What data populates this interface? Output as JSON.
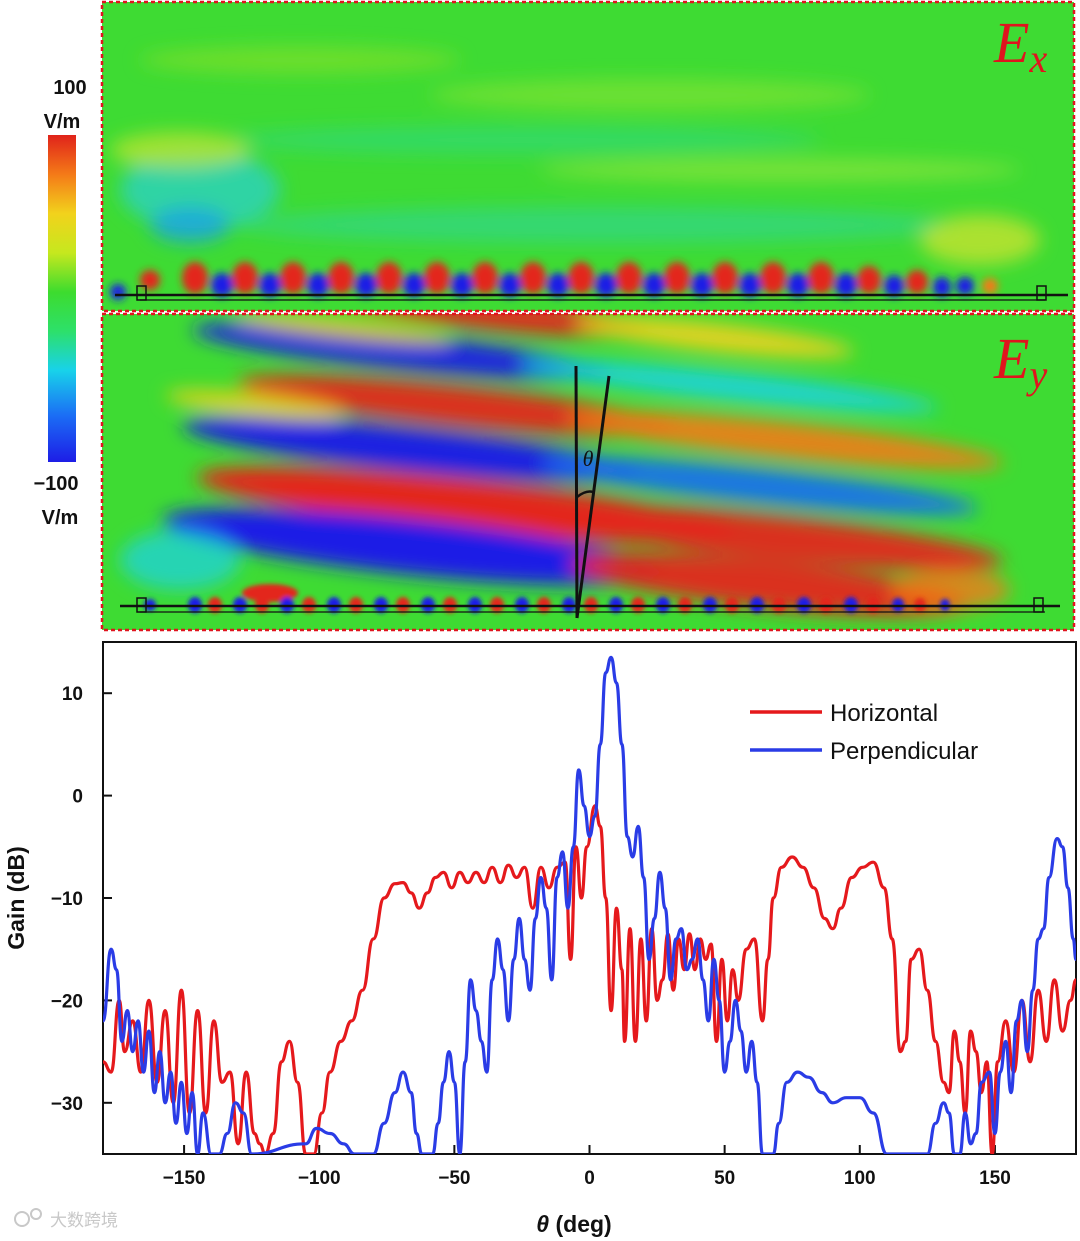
{
  "colorbar": {
    "max_value": "100",
    "max_unit": "V/m",
    "min_value": "−100",
    "min_unit": "V/m",
    "colors": [
      "#1d1de6",
      "#1b6cf5",
      "#18d2ea",
      "#2de06a",
      "#3ddc2e",
      "#c6e81e",
      "#f2d21c",
      "#f47a18",
      "#e0231a"
    ]
  },
  "field_panels": [
    {
      "id": "ex",
      "label_main": "E",
      "label_sub": "x"
    },
    {
      "id": "ey",
      "label_main": "E",
      "label_sub": "y",
      "angle_symbol": "θ"
    }
  ],
  "chart_data": {
    "type": "line",
    "title": "",
    "xlabel_symbol": "θ",
    "xlabel_unit": " (deg)",
    "ylabel": "Gain (dB)",
    "xlim": [
      -180,
      180
    ],
    "ylim": [
      -35,
      15
    ],
    "xticks": [
      -150,
      -100,
      -50,
      0,
      50,
      100,
      150
    ],
    "xtick_labels": [
      "−150",
      "−100",
      "−50",
      "0",
      "50",
      "100",
      "150"
    ],
    "yticks": [
      10,
      0,
      -10,
      -20,
      -30
    ],
    "ytick_labels": [
      "10",
      "0",
      "−10",
      "−20",
      "−30"
    ],
    "legend_position": "top-right",
    "series": [
      {
        "name": "Horizontal",
        "color": "#e5191c",
        "points": [
          [
            -180,
            -26
          ],
          [
            -177,
            -27
          ],
          [
            -174,
            -20
          ],
          [
            -172,
            -25
          ],
          [
            -169,
            -22
          ],
          [
            -166,
            -27
          ],
          [
            -163,
            -20
          ],
          [
            -160,
            -28
          ],
          [
            -157,
            -21
          ],
          [
            -154,
            -30
          ],
          [
            -151,
            -19
          ],
          [
            -148,
            -31
          ],
          [
            -145,
            -21
          ],
          [
            -142,
            -31
          ],
          [
            -139,
            -22
          ],
          [
            -136,
            -28
          ],
          [
            -133,
            -27
          ],
          [
            -130,
            -34
          ],
          [
            -127,
            -27
          ],
          [
            -124,
            -33
          ],
          [
            -122,
            -34
          ],
          [
            -120,
            -35
          ],
          [
            -117,
            -33
          ],
          [
            -114,
            -26
          ],
          [
            -111,
            -24
          ],
          [
            -108,
            -28
          ],
          [
            -105,
            -35
          ],
          [
            -102,
            -35
          ],
          [
            -99,
            -31
          ],
          [
            -96,
            -27
          ],
          [
            -92,
            -24
          ],
          [
            -88,
            -22
          ],
          [
            -84,
            -19
          ],
          [
            -80,
            -14
          ],
          [
            -76,
            -10
          ],
          [
            -72,
            -8.6
          ],
          [
            -69,
            -8.5
          ],
          [
            -66,
            -9.5
          ],
          [
            -63,
            -11
          ],
          [
            -60,
            -9.5
          ],
          [
            -57,
            -8
          ],
          [
            -54,
            -7.5
          ],
          [
            -51,
            -9
          ],
          [
            -48,
            -7.5
          ],
          [
            -45,
            -8.5
          ],
          [
            -42,
            -7.5
          ],
          [
            -39,
            -8.5
          ],
          [
            -36,
            -7
          ],
          [
            -33,
            -8.5
          ],
          [
            -30,
            -6.8
          ],
          [
            -27,
            -8
          ],
          [
            -24,
            -7
          ],
          [
            -21,
            -11
          ],
          [
            -18,
            -7
          ],
          [
            -15,
            -9
          ],
          [
            -12,
            -7
          ],
          [
            -9,
            -6.5
          ],
          [
            -7,
            -16
          ],
          [
            -5,
            -5
          ],
          [
            -3,
            -10
          ],
          [
            -1,
            -5
          ],
          [
            2,
            -1
          ],
          [
            4,
            -3
          ],
          [
            6,
            -10
          ],
          [
            8,
            -21
          ],
          [
            10,
            -11
          ],
          [
            12,
            -17
          ],
          [
            13,
            -24
          ],
          [
            15,
            -13
          ],
          [
            17,
            -24
          ],
          [
            19,
            -14
          ],
          [
            21,
            -22
          ],
          [
            23,
            -13
          ],
          [
            25,
            -20
          ],
          [
            27,
            -18
          ],
          [
            29,
            -13.5
          ],
          [
            31,
            -19
          ],
          [
            33,
            -14
          ],
          [
            35,
            -17
          ],
          [
            37,
            -13.5
          ],
          [
            39,
            -17
          ],
          [
            41,
            -14
          ],
          [
            43,
            -16
          ],
          [
            45,
            -14.5
          ],
          [
            47,
            -24
          ],
          [
            49,
            -16
          ],
          [
            51,
            -22
          ],
          [
            53,
            -17
          ],
          [
            55,
            -20
          ],
          [
            58,
            -15
          ],
          [
            61,
            -14
          ],
          [
            64,
            -22
          ],
          [
            66,
            -16
          ],
          [
            68,
            -10
          ],
          [
            71,
            -7
          ],
          [
            75,
            -6
          ],
          [
            79,
            -7
          ],
          [
            83,
            -9
          ],
          [
            87,
            -12
          ],
          [
            90,
            -13
          ],
          [
            93,
            -11
          ],
          [
            97,
            -8
          ],
          [
            101,
            -7
          ],
          [
            105,
            -6.5
          ],
          [
            109,
            -9
          ],
          [
            112,
            -14
          ],
          [
            115,
            -25
          ],
          [
            117,
            -24
          ],
          [
            119,
            -16
          ],
          [
            122,
            -15
          ],
          [
            125,
            -19
          ],
          [
            128,
            -24
          ],
          [
            131,
            -28
          ],
          [
            133,
            -29
          ],
          [
            135,
            -23
          ],
          [
            137,
            -26
          ],
          [
            139,
            -31
          ],
          [
            141,
            -23
          ],
          [
            143,
            -25
          ],
          [
            145,
            -29
          ],
          [
            147,
            -26
          ],
          [
            149,
            -35
          ],
          [
            151,
            -26
          ],
          [
            154,
            -22
          ],
          [
            157,
            -27
          ],
          [
            160,
            -20
          ],
          [
            163,
            -26
          ],
          [
            166,
            -19
          ],
          [
            169,
            -24
          ],
          [
            172,
            -18
          ],
          [
            175,
            -23
          ],
          [
            178,
            -20
          ],
          [
            180,
            -18
          ]
        ]
      },
      {
        "name": "Perpendicular",
        "color": "#2a3ce6",
        "points": [
          [
            -180,
            -22
          ],
          [
            -177,
            -15
          ],
          [
            -175,
            -17
          ],
          [
            -173,
            -24
          ],
          [
            -171,
            -21
          ],
          [
            -169,
            -25
          ],
          [
            -167,
            -22
          ],
          [
            -165,
            -27
          ],
          [
            -163,
            -23
          ],
          [
            -161,
            -29
          ],
          [
            -159,
            -25
          ],
          [
            -157,
            -30
          ],
          [
            -155,
            -27
          ],
          [
            -153,
            -32
          ],
          [
            -151,
            -28
          ],
          [
            -149,
            -33
          ],
          [
            -147,
            -29
          ],
          [
            -145,
            -35
          ],
          [
            -143,
            -31
          ],
          [
            -140,
            -35
          ],
          [
            -137,
            -35
          ],
          [
            -134,
            -33
          ],
          [
            -131,
            -30
          ],
          [
            -128,
            -31
          ],
          [
            -125,
            -35
          ],
          [
            -105,
            -34
          ],
          [
            -101,
            -32.5
          ],
          [
            -96,
            -33
          ],
          [
            -91,
            -34
          ],
          [
            -87,
            -35
          ],
          [
            -80,
            -35
          ],
          [
            -76,
            -32
          ],
          [
            -72,
            -29
          ],
          [
            -69,
            -27
          ],
          [
            -66,
            -29
          ],
          [
            -64,
            -33
          ],
          [
            -62,
            -35
          ],
          [
            -58,
            -35
          ],
          [
            -56,
            -32
          ],
          [
            -54,
            -28
          ],
          [
            -52,
            -25
          ],
          [
            -50,
            -28
          ],
          [
            -48,
            -35
          ],
          [
            -46,
            -26
          ],
          [
            -44,
            -18
          ],
          [
            -42,
            -21
          ],
          [
            -40,
            -24
          ],
          [
            -38,
            -27
          ],
          [
            -36,
            -18
          ],
          [
            -34,
            -14
          ],
          [
            -32,
            -17
          ],
          [
            -30,
            -22
          ],
          [
            -28,
            -16
          ],
          [
            -26,
            -12
          ],
          [
            -24,
            -16
          ],
          [
            -22,
            -19
          ],
          [
            -20,
            -12
          ],
          [
            -18,
            -8
          ],
          [
            -16,
            -11
          ],
          [
            -14,
            -18
          ],
          [
            -12,
            -8
          ],
          [
            -10,
            -5.5
          ],
          [
            -8,
            -11
          ],
          [
            -6,
            -5
          ],
          [
            -4,
            2.5
          ],
          [
            -2,
            -1
          ],
          [
            0,
            -4
          ],
          [
            2,
            -2
          ],
          [
            4,
            5
          ],
          [
            6,
            12
          ],
          [
            8,
            13.5
          ],
          [
            10,
            11
          ],
          [
            12,
            5
          ],
          [
            14,
            -4
          ],
          [
            16,
            -6
          ],
          [
            18,
            -3
          ],
          [
            20,
            -8
          ],
          [
            22,
            -16
          ],
          [
            24,
            -12
          ],
          [
            26,
            -7.5
          ],
          [
            28,
            -11
          ],
          [
            30,
            -18
          ],
          [
            32,
            -14
          ],
          [
            34,
            -13
          ],
          [
            36,
            -17
          ],
          [
            38,
            -16
          ],
          [
            40,
            -14
          ],
          [
            42,
            -18
          ],
          [
            44,
            -22
          ],
          [
            46,
            -16
          ],
          [
            48,
            -20
          ],
          [
            50,
            -27
          ],
          [
            52,
            -24
          ],
          [
            54,
            -20
          ],
          [
            56,
            -23
          ],
          [
            58,
            -27
          ],
          [
            60,
            -24
          ],
          [
            62,
            -28
          ],
          [
            64,
            -35
          ],
          [
            68,
            -35
          ],
          [
            70,
            -32
          ],
          [
            73,
            -28
          ],
          [
            77,
            -27
          ],
          [
            81,
            -27.5
          ],
          [
            86,
            -29
          ],
          [
            90,
            -30
          ],
          [
            95,
            -29.5
          ],
          [
            100,
            -29.5
          ],
          [
            105,
            -31
          ],
          [
            110,
            -35
          ],
          [
            125,
            -35
          ],
          [
            128,
            -32
          ],
          [
            131,
            -30
          ],
          [
            133,
            -31
          ],
          [
            135,
            -35
          ],
          [
            137,
            -35
          ],
          [
            139,
            -31
          ],
          [
            141,
            -34
          ],
          [
            143,
            -33
          ],
          [
            145,
            -28
          ],
          [
            148,
            -27
          ],
          [
            150,
            -33
          ],
          [
            152,
            -27
          ],
          [
            154,
            -24
          ],
          [
            156,
            -29
          ],
          [
            158,
            -22
          ],
          [
            160,
            -20
          ],
          [
            162,
            -25
          ],
          [
            164,
            -19
          ],
          [
            166,
            -14
          ],
          [
            168,
            -13
          ],
          [
            170,
            -8
          ],
          [
            173,
            -4.2
          ],
          [
            175,
            -5
          ],
          [
            177,
            -9
          ],
          [
            179,
            -14
          ],
          [
            180,
            -16
          ]
        ]
      }
    ]
  },
  "watermark": "大数跨境"
}
